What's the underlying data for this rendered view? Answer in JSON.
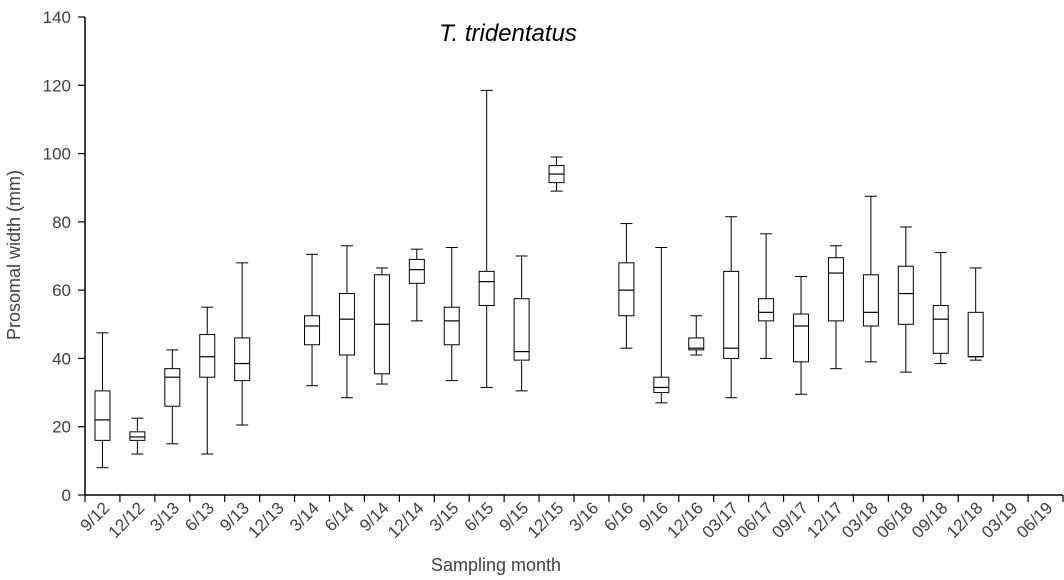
{
  "chart_data": {
    "type": "box",
    "title": "T. tridentatus",
    "xlabel": "Sampling month",
    "ylabel": "Prosomal width (mm)",
    "ylim": [
      0,
      140
    ],
    "yticks": [
      0,
      20,
      40,
      60,
      80,
      100,
      120,
      140
    ],
    "grid": false,
    "legend": "none",
    "categories": [
      "9/12",
      "12/12",
      "3/13",
      "6/13",
      "9/13",
      "12/13",
      "3/14",
      "6/14",
      "9/14",
      "12/14",
      "3/15",
      "6/15",
      "9/15",
      "12/15",
      "3/16",
      "6/16",
      "9/16",
      "12/16",
      "03/17",
      "06/17",
      "09/17",
      "12/17",
      "03/18",
      "06/18",
      "09/18",
      "12/18",
      "03/19",
      "06/19"
    ],
    "boxes": [
      {
        "min": 8,
        "q1": 16,
        "median": 22,
        "q3": 30.5,
        "max": 47.5
      },
      {
        "min": 12,
        "q1": 16,
        "median": 17,
        "q3": 18.5,
        "max": 22.5
      },
      {
        "min": 15,
        "q1": 26,
        "median": 34.5,
        "q3": 37,
        "max": 42.5
      },
      {
        "min": 12,
        "q1": 34.5,
        "median": 40.5,
        "q3": 47,
        "max": 55
      },
      {
        "min": 20.5,
        "q1": 33.5,
        "median": 38.5,
        "q3": 46,
        "max": 68
      },
      null,
      {
        "min": 32,
        "q1": 44,
        "median": 49.5,
        "q3": 52.5,
        "max": 70.5
      },
      {
        "min": 28.5,
        "q1": 41,
        "median": 51.5,
        "q3": 59,
        "max": 73
      },
      {
        "min": 32.5,
        "q1": 35.5,
        "median": 50,
        "q3": 64.5,
        "max": 66.5
      },
      {
        "min": 51,
        "q1": 62,
        "median": 66,
        "q3": 69,
        "max": 72
      },
      {
        "min": 33.5,
        "q1": 44,
        "median": 51,
        "q3": 55,
        "max": 72.5
      },
      {
        "min": 31.5,
        "q1": 55.5,
        "median": 62.5,
        "q3": 65.5,
        "max": 118.5
      },
      {
        "min": 30.5,
        "q1": 39.5,
        "median": 42,
        "q3": 57.5,
        "max": 70
      },
      {
        "min": 89,
        "q1": 91.5,
        "median": 94,
        "q3": 96.5,
        "max": 99
      },
      null,
      {
        "min": 43,
        "q1": 52.5,
        "median": 60,
        "q3": 68,
        "max": 79.5
      },
      {
        "min": 27,
        "q1": 30,
        "median": 31.5,
        "q3": 34.5,
        "max": 72.5
      },
      {
        "min": 41,
        "q1": 42.5,
        "median": 43,
        "q3": 46,
        "max": 52.5
      },
      {
        "min": 28.5,
        "q1": 40,
        "median": 43,
        "q3": 65.5,
        "max": 81.5
      },
      {
        "min": 40,
        "q1": 51,
        "median": 53.5,
        "q3": 57.5,
        "max": 76.5
      },
      {
        "min": 29.5,
        "q1": 39,
        "median": 49.5,
        "q3": 53,
        "max": 64
      },
      {
        "min": 37,
        "q1": 51,
        "median": 65,
        "q3": 69.5,
        "max": 73
      },
      {
        "min": 39,
        "q1": 49.5,
        "median": 53.5,
        "q3": 64.5,
        "max": 87.5
      },
      {
        "min": 36,
        "q1": 50,
        "median": 59,
        "q3": 67,
        "max": 78.5
      },
      {
        "min": 38.5,
        "q1": 41.5,
        "median": 51.5,
        "q3": 55.5,
        "max": 71
      },
      {
        "min": 39.5,
        "q1": 40.5,
        "median": 40.5,
        "q3": 53.5,
        "max": 66.5
      },
      null,
      null
    ]
  }
}
